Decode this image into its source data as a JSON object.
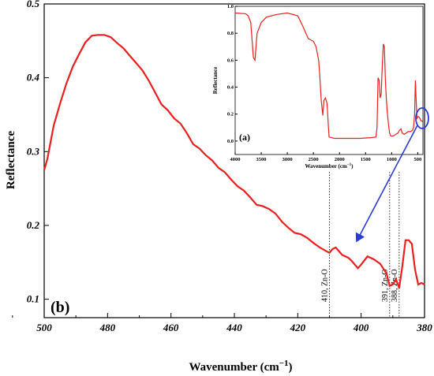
{
  "chart_data": [
    {
      "id": "main",
      "type": "line",
      "panel_label": "(b)",
      "xlabel": "Wavenumber (cm",
      "xlabel_sup": "−1",
      "xlabel_close": ")",
      "ylabel": "Reflectance",
      "xlim": [
        500,
        380
      ],
      "ylim": [
        0.075,
        0.5
      ],
      "x_ticks": [
        500,
        480,
        460,
        440,
        420,
        400,
        380
      ],
      "y_ticks": [
        0.1,
        0.2,
        0.3,
        0.4,
        0.5
      ],
      "line_color": "#e8201f",
      "series": [
        {
          "x": [
            500,
            499,
            497,
            495,
            493,
            491,
            489,
            487,
            485,
            483,
            481,
            479,
            477,
            475,
            473,
            471,
            469,
            467,
            465,
            463,
            461,
            459,
            457,
            455,
            453,
            451,
            449,
            447,
            445,
            443,
            441,
            439,
            437,
            435,
            433,
            431,
            429,
            427,
            425,
            423,
            421,
            419,
            417,
            415,
            413,
            411,
            410,
            409,
            408,
            406,
            404,
            403,
            401,
            400,
            398,
            396,
            394,
            392,
            391,
            390,
            389,
            388,
            387,
            386,
            385,
            384,
            383,
            382,
            381,
            380
          ],
          "y": [
            0.275,
            0.29,
            0.335,
            0.365,
            0.392,
            0.415,
            0.432,
            0.448,
            0.457,
            0.458,
            0.458,
            0.455,
            0.447,
            0.44,
            0.43,
            0.42,
            0.41,
            0.396,
            0.38,
            0.364,
            0.356,
            0.345,
            0.338,
            0.325,
            0.31,
            0.304,
            0.295,
            0.288,
            0.278,
            0.272,
            0.262,
            0.253,
            0.247,
            0.238,
            0.228,
            0.226,
            0.222,
            0.216,
            0.205,
            0.197,
            0.19,
            0.188,
            0.183,
            0.176,
            0.17,
            0.165,
            0.163,
            0.168,
            0.17,
            0.16,
            0.156,
            0.152,
            0.142,
            0.147,
            0.158,
            0.154,
            0.148,
            0.135,
            0.118,
            0.12,
            0.127,
            0.115,
            0.145,
            0.18,
            0.18,
            0.175,
            0.14,
            0.12,
            0.122,
            0.12
          ]
        }
      ],
      "annotations": [
        {
          "x": 410,
          "label": "410, Zn-O"
        },
        {
          "x": 391,
          "label": "391, Zn-O"
        },
        {
          "x": 388,
          "label": "388, Zn-O"
        }
      ]
    },
    {
      "id": "inset",
      "type": "line",
      "panel_label": "(a)",
      "xlabel": "Wavenumber (cm",
      "xlabel_sup": "−1",
      "xlabel_close": ")",
      "ylabel": "Reflectance",
      "xlim": [
        4000,
        400
      ],
      "ylim": [
        -0.1,
        1.0
      ],
      "x_ticks": [
        4000,
        3500,
        3000,
        2500,
        2000,
        1500,
        1000,
        500
      ],
      "y_ticks": [
        0.0,
        0.2,
        0.4,
        0.6,
        0.8,
        1.0
      ],
      "y_tick_labels": [
        "0.0",
        "0.2",
        "0.4",
        "0.6",
        "0.8",
        "1.0"
      ],
      "line_color": "#e8201f",
      "series": [
        {
          "x": [
            4000,
            3800,
            3750,
            3700,
            3650,
            3620,
            3580,
            3500,
            3400,
            3200,
            3000,
            2800,
            2700,
            2600,
            2500,
            2450,
            2400,
            2380,
            2350,
            2320,
            2300,
            2270,
            2240,
            2200,
            2150,
            2100,
            2050,
            2000,
            1800,
            1600,
            1400,
            1300,
            1280,
            1260,
            1240,
            1220,
            1200,
            1180,
            1160,
            1140,
            1120,
            1100,
            1080,
            1060,
            1040,
            1020,
            1000,
            960,
            920,
            880,
            850,
            820,
            800,
            760,
            720,
            680,
            640,
            600,
            580,
            560,
            545,
            530,
            515,
            500,
            480,
            460,
            440,
            420,
            400
          ],
          "y": [
            0.95,
            0.945,
            0.93,
            0.88,
            0.62,
            0.6,
            0.8,
            0.88,
            0.92,
            0.94,
            0.95,
            0.93,
            0.85,
            0.76,
            0.74,
            0.7,
            0.6,
            0.5,
            0.3,
            0.19,
            0.3,
            0.32,
            0.28,
            0.03,
            0.025,
            0.02,
            0.02,
            0.02,
            0.02,
            0.02,
            0.025,
            0.03,
            0.1,
            0.47,
            0.45,
            0.32,
            0.35,
            0.55,
            0.72,
            0.7,
            0.45,
            0.3,
            0.2,
            0.12,
            0.06,
            0.04,
            0.035,
            0.04,
            0.05,
            0.06,
            0.08,
            0.09,
            0.06,
            0.05,
            0.06,
            0.07,
            0.07,
            0.08,
            0.1,
            0.2,
            0.45,
            0.3,
            0.17,
            0.18,
            0.18,
            0.17,
            0.15,
            0.15,
            0.14
          ]
        }
      ]
    }
  ]
}
